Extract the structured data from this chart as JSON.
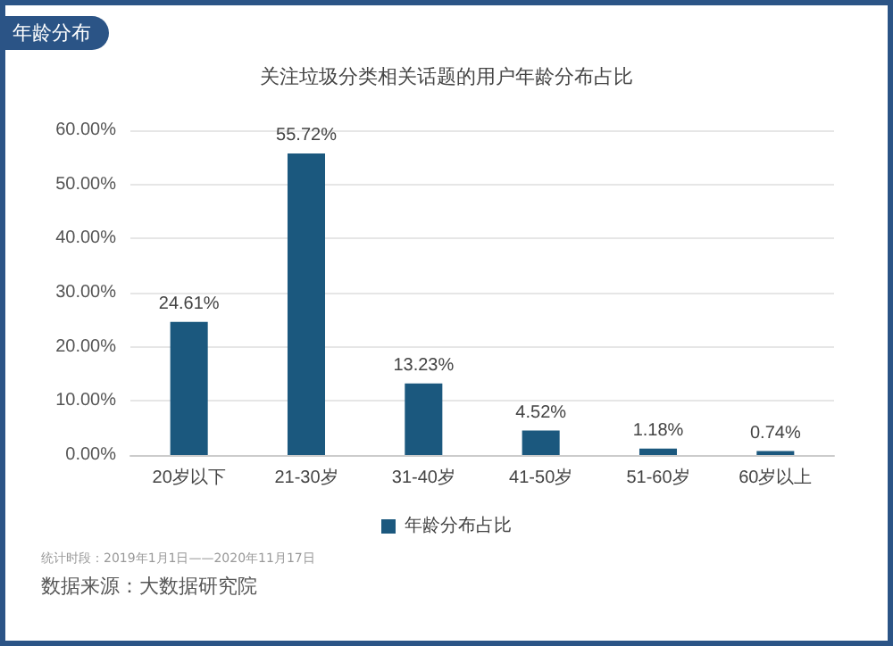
{
  "chart_data": {
    "type": "bar",
    "title": "关注垃圾分类相关话题的用户年龄分布占比",
    "annotations": [
      "年龄分布",
      "统计时段：2019年1月1日——2020年11月17日",
      "数据来源：大数据研究院"
    ],
    "categories": [
      "20岁以下",
      "21-30岁",
      "31-40岁",
      "41-50岁",
      "51-60岁",
      "60岁以上"
    ],
    "series": [
      {
        "name": "年龄分布占比",
        "color": "#1b587e",
        "values": [
          24.61,
          55.72,
          13.23,
          4.52,
          1.18,
          0.74
        ],
        "value_labels": [
          "24.61%",
          "55.72%",
          "13.23%",
          "4.52%",
          "1.18%",
          "0.74%"
        ]
      }
    ],
    "ylim": [
      0,
      60
    ],
    "yticks": [
      {
        "value": 0,
        "label": "0.00%"
      },
      {
        "value": 10,
        "label": "10.00%"
      },
      {
        "value": 20,
        "label": "20.00%"
      },
      {
        "value": 30,
        "label": "30.00%"
      },
      {
        "value": 40,
        "label": "40.00%"
      },
      {
        "value": 50,
        "label": "50.00%"
      },
      {
        "value": 60,
        "label": "60.00%"
      }
    ],
    "grid": "y",
    "legend": "bottom"
  }
}
